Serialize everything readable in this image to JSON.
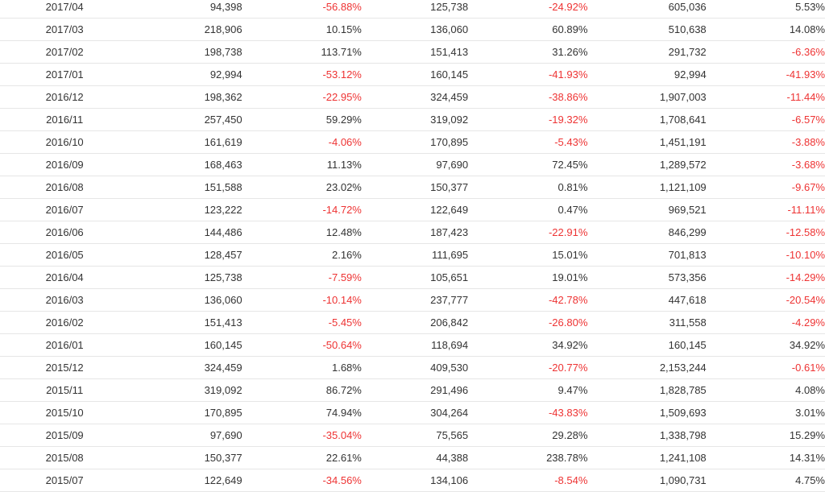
{
  "colors": {
    "negative": "#ee3333",
    "text": "#333333",
    "divider": "#e6e6e6"
  },
  "rows": [
    [
      "2017/04",
      "94,398",
      "-56.88%",
      "125,738",
      "-24.92%",
      "605,036",
      "5.53%"
    ],
    [
      "2017/03",
      "218,906",
      "10.15%",
      "136,060",
      "60.89%",
      "510,638",
      "14.08%"
    ],
    [
      "2017/02",
      "198,738",
      "113.71%",
      "151,413",
      "31.26%",
      "291,732",
      "-6.36%"
    ],
    [
      "2017/01",
      "92,994",
      "-53.12%",
      "160,145",
      "-41.93%",
      "92,994",
      "-41.93%"
    ],
    [
      "2016/12",
      "198,362",
      "-22.95%",
      "324,459",
      "-38.86%",
      "1,907,003",
      "-11.44%"
    ],
    [
      "2016/11",
      "257,450",
      "59.29%",
      "319,092",
      "-19.32%",
      "1,708,641",
      "-6.57%"
    ],
    [
      "2016/10",
      "161,619",
      "-4.06%",
      "170,895",
      "-5.43%",
      "1,451,191",
      "-3.88%"
    ],
    [
      "2016/09",
      "168,463",
      "11.13%",
      "97,690",
      "72.45%",
      "1,289,572",
      "-3.68%"
    ],
    [
      "2016/08",
      "151,588",
      "23.02%",
      "150,377",
      "0.81%",
      "1,121,109",
      "-9.67%"
    ],
    [
      "2016/07",
      "123,222",
      "-14.72%",
      "122,649",
      "0.47%",
      "969,521",
      "-11.11%"
    ],
    [
      "2016/06",
      "144,486",
      "12.48%",
      "187,423",
      "-22.91%",
      "846,299",
      "-12.58%"
    ],
    [
      "2016/05",
      "128,457",
      "2.16%",
      "111,695",
      "15.01%",
      "701,813",
      "-10.10%"
    ],
    [
      "2016/04",
      "125,738",
      "-7.59%",
      "105,651",
      "19.01%",
      "573,356",
      "-14.29%"
    ],
    [
      "2016/03",
      "136,060",
      "-10.14%",
      "237,777",
      "-42.78%",
      "447,618",
      "-20.54%"
    ],
    [
      "2016/02",
      "151,413",
      "-5.45%",
      "206,842",
      "-26.80%",
      "311,558",
      "-4.29%"
    ],
    [
      "2016/01",
      "160,145",
      "-50.64%",
      "118,694",
      "34.92%",
      "160,145",
      "34.92%"
    ],
    [
      "2015/12",
      "324,459",
      "1.68%",
      "409,530",
      "-20.77%",
      "2,153,244",
      "-0.61%"
    ],
    [
      "2015/11",
      "319,092",
      "86.72%",
      "291,496",
      "9.47%",
      "1,828,785",
      "4.08%"
    ],
    [
      "2015/10",
      "170,895",
      "74.94%",
      "304,264",
      "-43.83%",
      "1,509,693",
      "3.01%"
    ],
    [
      "2015/09",
      "97,690",
      "-35.04%",
      "75,565",
      "29.28%",
      "1,338,798",
      "15.29%"
    ],
    [
      "2015/08",
      "150,377",
      "22.61%",
      "44,388",
      "238.78%",
      "1,241,108",
      "14.31%"
    ],
    [
      "2015/07",
      "122,649",
      "-34.56%",
      "134,106",
      "-8.54%",
      "1,090,731",
      "4.75%"
    ]
  ]
}
